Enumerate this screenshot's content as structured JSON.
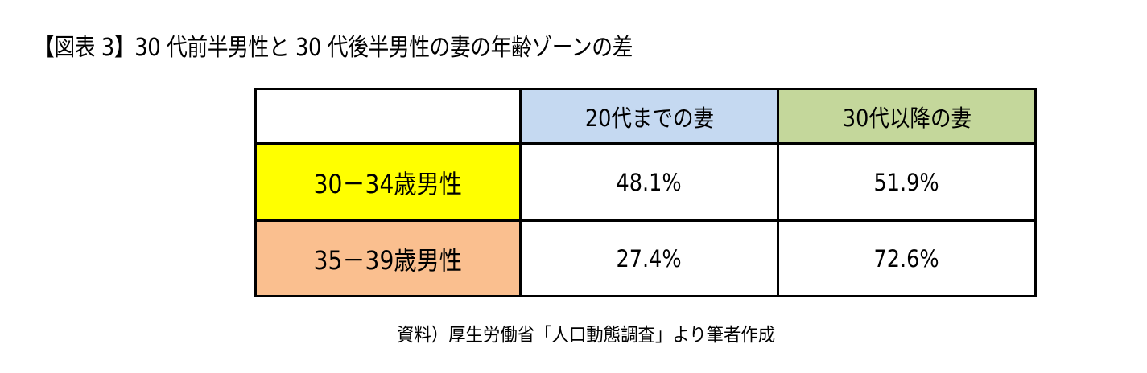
{
  "title": "【図表 3】30 代前半男性と 30 代後半男性の妻の年齢ゾーンの差",
  "table": {
    "corner": "",
    "columns": [
      {
        "label": "20代までの妻",
        "bg": "#c5d9f1"
      },
      {
        "label": "30代以降の妻",
        "bg": "#c4d79b"
      }
    ],
    "rows": [
      {
        "label": "30－34歳男性",
        "bg": "#ffff00",
        "values": [
          "48.1%",
          "51.9%"
        ]
      },
      {
        "label": "35－39歳男性",
        "bg": "#fabf8f",
        "values": [
          "27.4%",
          "72.6%"
        ]
      }
    ]
  },
  "source": "資料）厚生労働省「人口動態調査」より筆者作成",
  "chart_data": {
    "type": "table",
    "title": "【図表 3】30 代前半男性と 30 代後半男性の妻の年齢ゾーンの差",
    "columns": [
      "",
      "20代までの妻",
      "30代以降の妻"
    ],
    "rows": [
      [
        "30－34歳男性",
        "48.1%",
        "51.9%"
      ],
      [
        "35－39歳男性",
        "27.4%",
        "72.6%"
      ]
    ],
    "series": [
      {
        "name": "20代までの妻",
        "values": [
          48.1,
          27.4
        ]
      },
      {
        "name": "30代以降の妻",
        "values": [
          51.9,
          72.6
        ]
      }
    ],
    "categories": [
      "30－34歳男性",
      "35－39歳男性"
    ],
    "unit": "%",
    "source": "資料）厚生労働省「人口動態調査」より筆者作成"
  }
}
